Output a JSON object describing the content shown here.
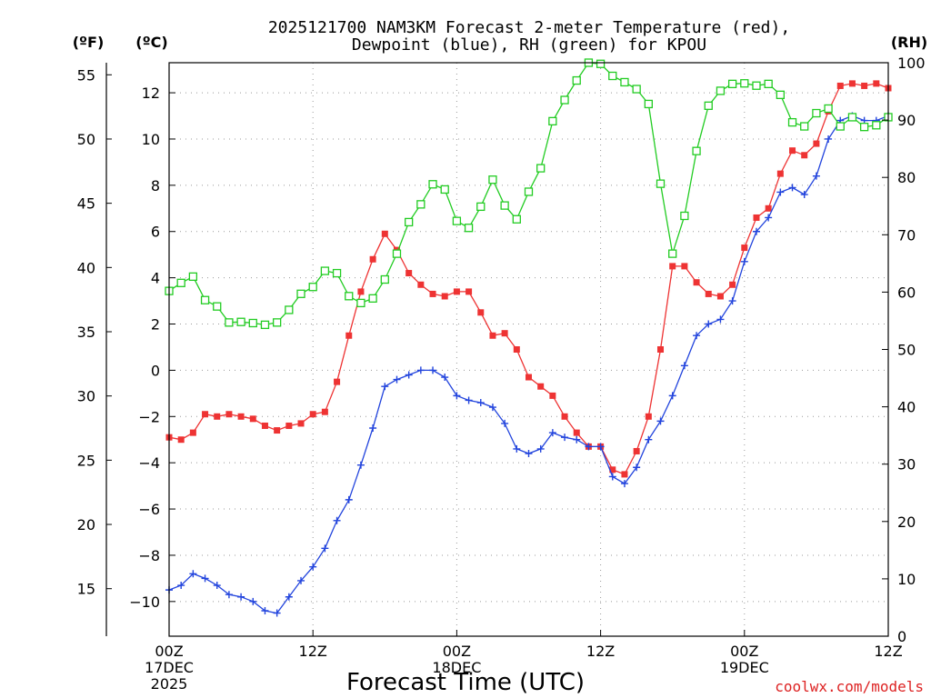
{
  "chart_data": {
    "type": "line",
    "title": [
      "2025121700 NAM3KM Forecast 2-meter Temperature (red),",
      "Dewpoint (blue), RH (green) for KPOU"
    ],
    "xlabel": "Forecast Time (UTC)",
    "credit": "coolwx.com/models",
    "units": {
      "fahrenheit": "(ºF)",
      "celsius": "(ºC)",
      "rh": "(RH)"
    },
    "x_range_hours": [
      0,
      60
    ],
    "x_ticks": [
      {
        "hour": 0,
        "lines": [
          "00Z",
          "17DEC",
          "2025"
        ]
      },
      {
        "hour": 12,
        "lines": [
          "12Z"
        ]
      },
      {
        "hour": 24,
        "lines": [
          "00Z",
          "18DEC"
        ]
      },
      {
        "hour": 36,
        "lines": [
          "12Z"
        ]
      },
      {
        "hour": 48,
        "lines": [
          "00Z",
          "19DEC"
        ]
      },
      {
        "hour": 60,
        "lines": [
          "12Z"
        ]
      }
    ],
    "celsius_axis": {
      "range": [
        -11.5,
        13.3
      ],
      "ticks": [
        "12",
        "10",
        "8",
        "6",
        "4",
        "2",
        "0",
        "−2",
        "−4",
        "−6",
        "−8",
        "−10"
      ]
    },
    "fahrenheit_axis": {
      "ticks": [
        "55",
        "50",
        "45",
        "40",
        "35",
        "30",
        "25",
        "20",
        "15"
      ]
    },
    "rh_axis": {
      "range": [
        0,
        100
      ],
      "ticks": [
        "100",
        "90",
        "80",
        "70",
        "60",
        "50",
        "40",
        "30",
        "20",
        "10",
        "0"
      ]
    },
    "colors": {
      "temperature": "#ee3333",
      "dewpoint": "#2244dd",
      "rh": "#22cc22",
      "grid": "#999999"
    },
    "series": [
      {
        "name": "2-meter Temperature (°C)",
        "axis": "celsius",
        "marker": "filled-square",
        "x": [
          0,
          1,
          2,
          3,
          4,
          5,
          6,
          7,
          8,
          9,
          10,
          11,
          12,
          13,
          14,
          15,
          16,
          17,
          18,
          19,
          20,
          21,
          22,
          23,
          24,
          25,
          26,
          27,
          28,
          29,
          30,
          31,
          32,
          33,
          34,
          35,
          36,
          37,
          38,
          39,
          40,
          41,
          42,
          43,
          44,
          45,
          46,
          47,
          48,
          49,
          50,
          51,
          52,
          53,
          54,
          55,
          56,
          57,
          58,
          59,
          60
        ],
        "values": [
          -2.9,
          -3.0,
          -2.7,
          -1.9,
          -2.0,
          -1.9,
          -2.0,
          -2.1,
          -2.4,
          -2.6,
          -2.4,
          -2.3,
          -1.9,
          -1.8,
          -0.5,
          1.5,
          3.4,
          4.8,
          5.9,
          5.2,
          4.2,
          3.7,
          3.3,
          3.2,
          3.4,
          3.4,
          2.5,
          1.5,
          1.6,
          0.9,
          -0.3,
          -0.7,
          -1.1,
          -2.0,
          -2.7,
          -3.3,
          -3.3,
          -4.3,
          -4.5,
          -3.5,
          -2.0,
          0.9,
          4.5,
          4.5,
          3.8,
          3.3,
          3.2,
          3.7,
          5.3,
          6.6,
          7.0,
          8.5,
          9.5,
          9.3,
          9.8,
          11.2,
          12.3,
          12.4,
          12.3,
          12.4,
          12.2
        ]
      },
      {
        "name": "Dewpoint (°C)",
        "axis": "celsius",
        "marker": "plus",
        "x": [
          0,
          1,
          2,
          3,
          4,
          5,
          6,
          7,
          8,
          9,
          10,
          11,
          12,
          13,
          14,
          15,
          16,
          17,
          18,
          19,
          20,
          21,
          22,
          23,
          24,
          25,
          26,
          27,
          28,
          29,
          30,
          31,
          32,
          33,
          34,
          35,
          36,
          37,
          38,
          39,
          40,
          41,
          42,
          43,
          44,
          45,
          46,
          47,
          48,
          49,
          50,
          51,
          52,
          53,
          54,
          55,
          56,
          57,
          58,
          59,
          60
        ],
        "values": [
          -9.5,
          -9.3,
          -8.8,
          -9.0,
          -9.3,
          -9.7,
          -9.8,
          -10.0,
          -10.4,
          -10.5,
          -9.8,
          -9.1,
          -8.5,
          -7.7,
          -6.5,
          -5.6,
          -4.1,
          -2.5,
          -0.7,
          -0.4,
          -0.2,
          0.0,
          0.0,
          -0.3,
          -1.1,
          -1.3,
          -1.4,
          -1.6,
          -2.3,
          -3.4,
          -3.6,
          -3.4,
          -2.7,
          -2.9,
          -3.0,
          -3.3,
          -3.3,
          -4.6,
          -4.9,
          -4.2,
          -3.0,
          -2.2,
          -1.1,
          0.2,
          1.5,
          2.0,
          2.2,
          3.0,
          4.7,
          6.0,
          6.6,
          7.7,
          7.9,
          7.6,
          8.4,
          10.0,
          10.8,
          11.0,
          10.8,
          10.8,
          11.0
        ]
      },
      {
        "name": "RH (%)",
        "axis": "rh",
        "marker": "open-square",
        "x": [
          0,
          1,
          2,
          3,
          4,
          5,
          6,
          7,
          8,
          9,
          10,
          11,
          12,
          13,
          14,
          15,
          16,
          17,
          18,
          19,
          20,
          21,
          22,
          23,
          24,
          25,
          26,
          27,
          28,
          29,
          30,
          31,
          32,
          33,
          34,
          35,
          36,
          37,
          38,
          39,
          40,
          41,
          42,
          43,
          44,
          45,
          46,
          47,
          48,
          49,
          50,
          51,
          52,
          53,
          54,
          55,
          56,
          57,
          58,
          59,
          60
        ],
        "values": [
          60.2,
          61.6,
          62.7,
          58.6,
          57.5,
          54.7,
          54.8,
          54.6,
          54.3,
          54.7,
          56.9,
          59.7,
          60.9,
          63.7,
          63.3,
          59.3,
          58.1,
          58.9,
          62.2,
          66.7,
          72.2,
          75.3,
          78.8,
          77.9,
          72.4,
          71.2,
          74.9,
          79.6,
          75.1,
          72.7,
          77.5,
          81.6,
          89.8,
          93.5,
          96.9,
          100,
          99.8,
          97.7,
          96.6,
          95.4,
          92.8,
          78.9,
          66.7,
          73.3,
          84.6,
          92.5,
          95.1,
          96.3,
          96.4,
          96.0,
          96.3,
          94.4,
          89.6,
          88.9,
          91.2,
          92.0,
          88.9,
          90.5,
          88.8,
          89.1,
          90.5
        ]
      }
    ]
  }
}
